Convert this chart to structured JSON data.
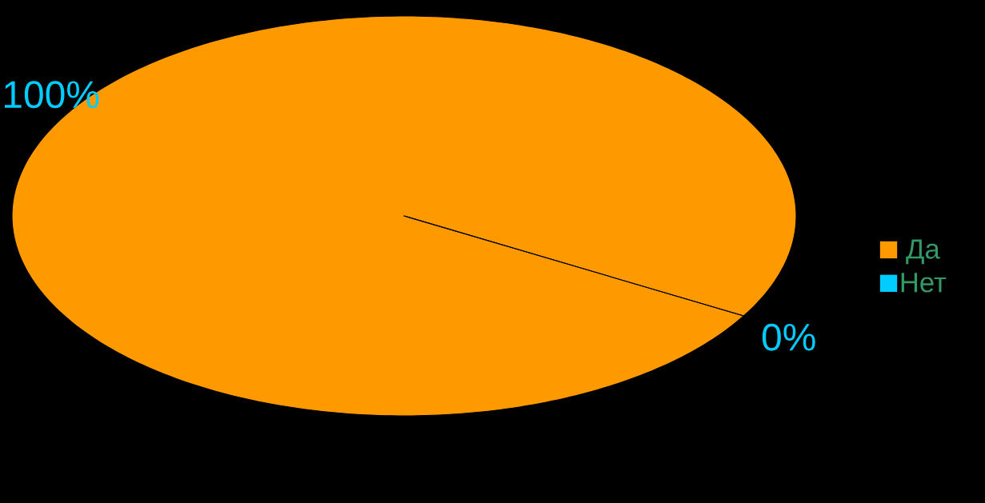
{
  "chart_data": {
    "type": "pie",
    "categories": [
      "Да",
      "Нет"
    ],
    "values": [
      100,
      0
    ],
    "colors": [
      "#ff9900",
      "#00ccff"
    ],
    "value_labels": [
      "100%",
      "0%"
    ],
    "legend": "right"
  }
}
